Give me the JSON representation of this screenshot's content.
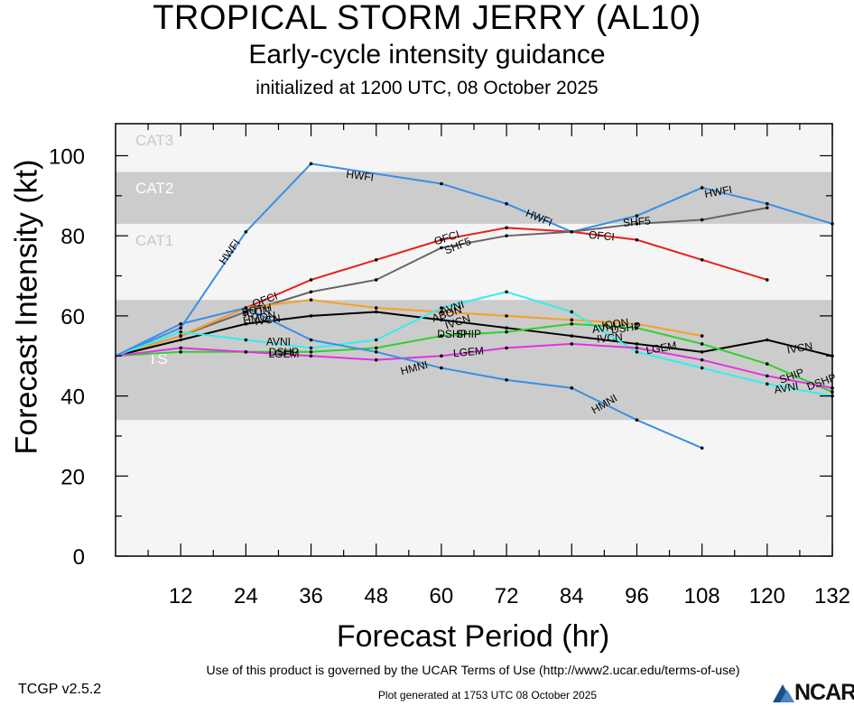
{
  "header": {
    "title": "TROPICAL STORM JERRY (AL10)",
    "subtitle": "Early-cycle intensity guidance",
    "init": "initialized at 1200 UTC, 08 October 2025"
  },
  "footer": {
    "terms": "Use of this product is governed by the UCAR Terms of Use (http://www2.ucar.edu/terms-of-use)",
    "version": "TCGP v2.5.2",
    "generated": "Plot generated at 1753 UTC   08 October 2025",
    "logo_text": "NCAR"
  },
  "chart_data": {
    "type": "line",
    "xlabel": "Forecast Period (hr)",
    "ylabel": "Forecast Intensity (kt)",
    "xlim": [
      0,
      132
    ],
    "ylim": [
      0,
      108
    ],
    "xticks": [
      12,
      24,
      36,
      48,
      60,
      72,
      84,
      96,
      108,
      120,
      132
    ],
    "yticks": [
      0,
      20,
      40,
      60,
      80,
      100
    ],
    "bands": [
      {
        "label": "TS",
        "from": 34,
        "to": 64,
        "color": "#cccccc"
      },
      {
        "label": "CAT1",
        "from": 64,
        "to": 83,
        "color": "#f5f5f5"
      },
      {
        "label": "CAT2",
        "from": 83,
        "to": 96,
        "color": "#cccccc"
      },
      {
        "label": "CAT3",
        "from": 96,
        "to": 108,
        "color": "#f5f5f5"
      }
    ],
    "below_band_color": "#f5f5f5",
    "series": [
      {
        "name": "HWFI",
        "color": "#3a8ee6",
        "x": [
          0,
          12,
          24,
          36,
          60,
          72,
          84,
          96,
          108,
          120,
          132
        ],
        "y": [
          50,
          57,
          81,
          98,
          93,
          88,
          81,
          85,
          92,
          88,
          83
        ]
      },
      {
        "name": "OFCI",
        "color": "#e8201e",
        "x": [
          0,
          12,
          24,
          36,
          48,
          60,
          72,
          84,
          96,
          108,
          120
        ],
        "y": [
          50,
          55,
          62,
          69,
          74,
          79,
          82,
          81,
          79,
          74,
          69
        ]
      },
      {
        "name": "SHF5",
        "color": "#666666",
        "x": [
          0,
          12,
          24,
          36,
          48,
          60,
          72,
          84,
          96,
          108,
          120
        ],
        "y": [
          50,
          55,
          61,
          66,
          69,
          77,
          80,
          81,
          83,
          84,
          87
        ]
      },
      {
        "name": "ICON",
        "color": "#f5a02a",
        "x": [
          0,
          12,
          24,
          36,
          48,
          60,
          72,
          84,
          96,
          108
        ],
        "y": [
          50,
          55,
          62,
          64,
          62,
          61,
          60,
          59,
          58,
          55
        ]
      },
      {
        "name": "IVCN",
        "color": "#000000",
        "x": [
          0,
          12,
          24,
          36,
          48,
          60,
          72,
          84,
          96,
          108,
          120,
          132
        ],
        "y": [
          50,
          54,
          58,
          60,
          61,
          59,
          57,
          55,
          53,
          51,
          54,
          50
        ]
      },
      {
        "name": "AVNI",
        "color": "#33eeee",
        "x": [
          0,
          12,
          24,
          36,
          48,
          60,
          72,
          84,
          96,
          108,
          120,
          132
        ],
        "y": [
          50,
          56,
          54,
          52,
          54,
          62,
          66,
          61,
          51,
          47,
          43,
          40
        ]
      },
      {
        "name": "DSHP",
        "color": "#2ed12e",
        "x": [
          0,
          12,
          24,
          36,
          48,
          60,
          72,
          84,
          96,
          108,
          120,
          132
        ],
        "y": [
          50,
          51,
          51,
          51,
          52,
          55,
          56,
          58,
          57,
          53,
          48,
          41
        ]
      },
      {
        "name": "LGEM",
        "color": "#e033e0",
        "x": [
          0,
          12,
          24,
          36,
          48,
          60,
          72,
          84,
          96,
          108,
          120,
          132
        ],
        "y": [
          50,
          52,
          51,
          50,
          49,
          50,
          52,
          53,
          52,
          49,
          45,
          42
        ]
      },
      {
        "name": "HMNI",
        "color": "#3a8ee6",
        "x": [
          0,
          12,
          24,
          36,
          48,
          60,
          72,
          84,
          96,
          108
        ],
        "y": [
          50,
          58,
          62,
          54,
          51,
          47,
          44,
          42,
          34,
          27
        ]
      }
    ],
    "annotations": [
      {
        "text": "HWFI",
        "x": 21,
        "y": 76,
        "angle": -55
      },
      {
        "text": "HWFI",
        "x": 45,
        "y": 95,
        "angle": 7
      },
      {
        "text": "HWFI",
        "x": 78,
        "y": 84.5,
        "angle": 22
      },
      {
        "text": "HWFI",
        "x": 111,
        "y": 91,
        "angle": -10
      },
      {
        "text": "OFCI",
        "x": 61,
        "y": 79.5,
        "angle": -18
      },
      {
        "text": "OFCI",
        "x": 89.5,
        "y": 80,
        "angle": 5
      },
      {
        "text": "OFCI",
        "x": 27.5,
        "y": 64,
        "angle": -20
      },
      {
        "text": "SHF5",
        "x": 63,
        "y": 77.5,
        "angle": -22
      },
      {
        "text": "SHF5",
        "x": 96,
        "y": 83.5,
        "angle": -5
      },
      {
        "text": "BOTH",
        "x": 26,
        "y": 61.5,
        "angle": -10
      },
      {
        "text": "HMON",
        "x": 26.5,
        "y": 59.5,
        "angle": -10
      },
      {
        "text": "ICON",
        "x": 26,
        "y": 61,
        "angle": -10
      },
      {
        "text": "IVCN",
        "x": 28,
        "y": 59,
        "angle": -8
      },
      {
        "text": "AVNI",
        "x": 62,
        "y": 62,
        "angle": -18
      },
      {
        "text": "AVNI",
        "x": 30,
        "y": 53.5,
        "angle": 0
      },
      {
        "text": "AVNI",
        "x": 90,
        "y": 57,
        "angle": -8
      },
      {
        "text": "AVNI",
        "x": 123.5,
        "y": 42,
        "angle": -10
      },
      {
        "text": "ABON",
        "x": 61,
        "y": 60.5,
        "angle": -18
      },
      {
        "text": "IVCN",
        "x": 63,
        "y": 58.5,
        "angle": -18
      },
      {
        "text": "IVCN",
        "x": 126,
        "y": 52,
        "angle": -10
      },
      {
        "text": "IVCN",
        "x": 91,
        "y": 54.5,
        "angle": -5
      },
      {
        "text": "ICON",
        "x": 92,
        "y": 58,
        "angle": -8
      },
      {
        "text": "DSHP",
        "x": 94,
        "y": 57,
        "angle": -8
      },
      {
        "text": "DSHP",
        "x": 62,
        "y": 55.5,
        "angle": 0
      },
      {
        "text": "DSHP",
        "x": 31,
        "y": 51,
        "angle": 0
      },
      {
        "text": "DSHP",
        "x": 130,
        "y": 43.5,
        "angle": -20
      },
      {
        "text": "SHIP",
        "x": 124.5,
        "y": 45,
        "angle": -20
      },
      {
        "text": "SHIP",
        "x": 65,
        "y": 55.5,
        "angle": 0
      },
      {
        "text": "LGEM",
        "x": 65,
        "y": 51,
        "angle": -5
      },
      {
        "text": "LGEM",
        "x": 31,
        "y": 50.5,
        "angle": 0
      },
      {
        "text": "LGEM",
        "x": 100.5,
        "y": 52,
        "angle": -10
      },
      {
        "text": "HMNI",
        "x": 55,
        "y": 47,
        "angle": -15
      },
      {
        "text": "HMNI",
        "x": 90,
        "y": 38,
        "angle": -30
      }
    ]
  }
}
